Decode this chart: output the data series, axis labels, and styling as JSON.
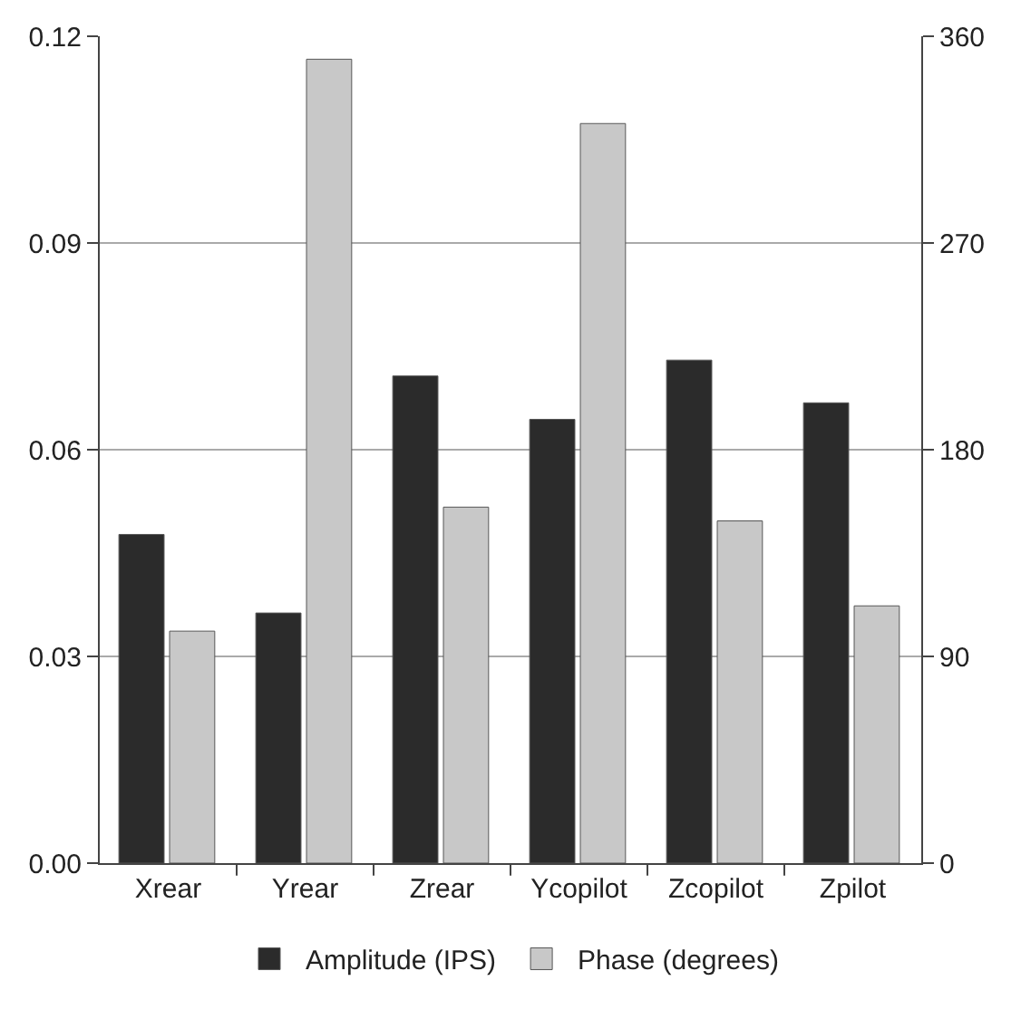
{
  "chart_data": {
    "type": "bar",
    "categories": [
      "Xrear",
      "Yrear",
      "Zrear",
      "Ycopilot",
      "Zcopilot",
      "Zpilot"
    ],
    "series": [
      {
        "name": "Amplitude (IPS)",
        "color": "#2b2b2b",
        "values": [
          0.0477,
          0.0363,
          0.0707,
          0.0644,
          0.073,
          0.0668
        ]
      },
      {
        "name": "Phase (degrees)",
        "color": "#c8c8c8",
        "axis": "y2",
        "values": [
          101,
          350,
          155,
          322,
          149,
          112
        ]
      }
    ],
    "ylim": [
      0,
      0.12
    ],
    "yticks": [
      {
        "value": 0,
        "label": "0.00"
      },
      {
        "value": 0.03,
        "label": "0.03"
      },
      {
        "value": 0.06,
        "label": "0.06"
      },
      {
        "value": 0.09,
        "label": "0.09"
      },
      {
        "value": 0.12,
        "label": "0.12"
      }
    ],
    "y2lim": [
      0,
      360
    ],
    "y2ticks": [
      0,
      90,
      180,
      270,
      360
    ],
    "grid": "y",
    "legend": "bottom"
  }
}
